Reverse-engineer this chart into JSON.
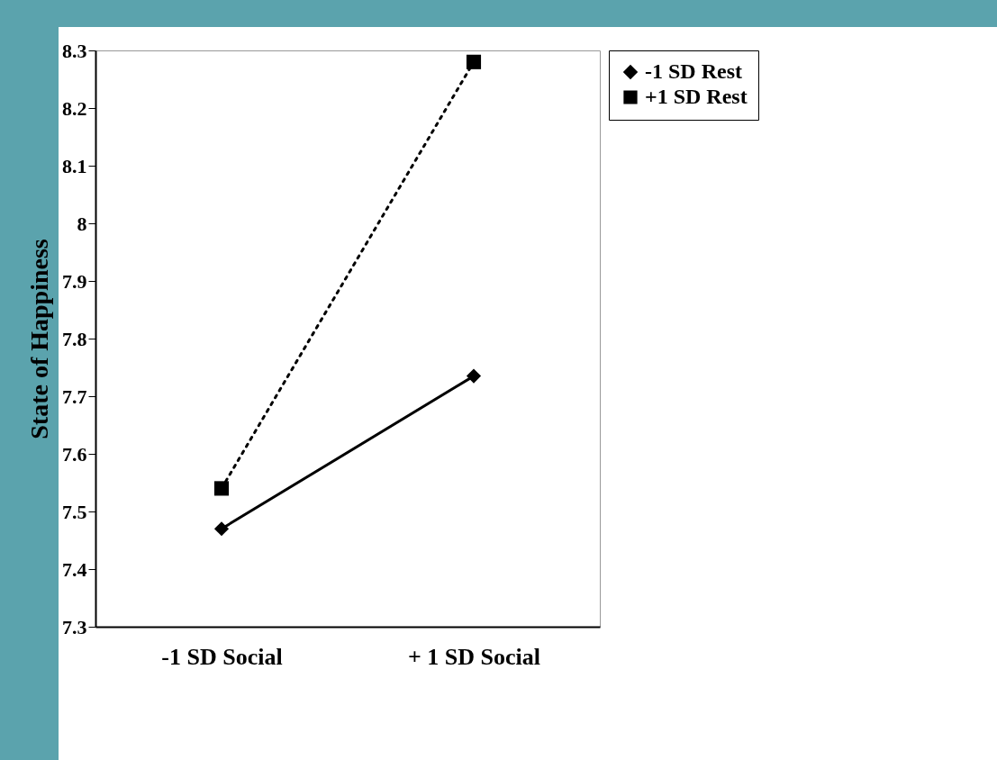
{
  "chart_data": {
    "type": "line",
    "ylabel": "State of Happiness",
    "categories": [
      "-1 SD Social",
      "+ 1 SD Social"
    ],
    "series": [
      {
        "name": "-1 SD Rest",
        "color": "#000000",
        "values": [
          7.47,
          7.735
        ],
        "marker": "diamond",
        "line_style": "solid"
      },
      {
        "name": "+1 SD Rest",
        "color": "#000000",
        "values": [
          7.54,
          8.28
        ],
        "marker": "square",
        "line_style": "dotted"
      }
    ],
    "ylim": [
      7.3,
      8.3
    ],
    "yticks": [
      7.3,
      7.4,
      7.5,
      7.6,
      7.7,
      7.8,
      7.9,
      8,
      8.1,
      8.2,
      8.3
    ],
    "grid": false,
    "legend": "right"
  }
}
